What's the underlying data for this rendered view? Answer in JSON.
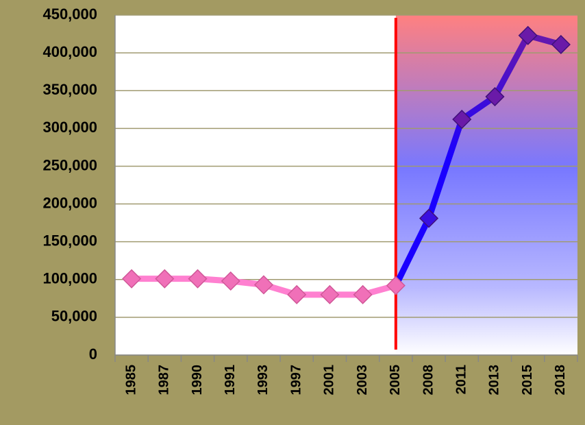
{
  "chart_data": {
    "type": "line",
    "categories": [
      "1985",
      "1987",
      "1990",
      "1991",
      "1993",
      "1997",
      "2001",
      "2003",
      "2005",
      "2008",
      "2011",
      "2013",
      "2015",
      "2018"
    ],
    "values": [
      101000,
      101000,
      101000,
      98000,
      93000,
      80000,
      80000,
      80000,
      92000,
      181000,
      312000,
      342000,
      423000,
      411000
    ],
    "color": "#ff80d0",
    "highlight_start": "2005",
    "highlight_color": "#1a00ff",
    "marker_line_color": "#ff0000",
    "ylim": [
      0,
      450000
    ],
    "yticks": [
      0,
      {
        "value": 50000,
        "label": "50,000"
      },
      {
        "value": 100000,
        "label": "100,000"
      },
      {
        "value": 150000,
        "label": "150,000"
      },
      {
        "value": 200000,
        "label": "200,000"
      },
      {
        "value": 250000,
        "label": "250,000"
      },
      {
        "value": 300000,
        "label": "300,000"
      },
      {
        "value": 350000,
        "label": "350,000"
      },
      {
        "value": 400000,
        "label": "400,000"
      },
      {
        "value": 450000,
        "label": "450,000"
      }
    ],
    "grid": true
  }
}
